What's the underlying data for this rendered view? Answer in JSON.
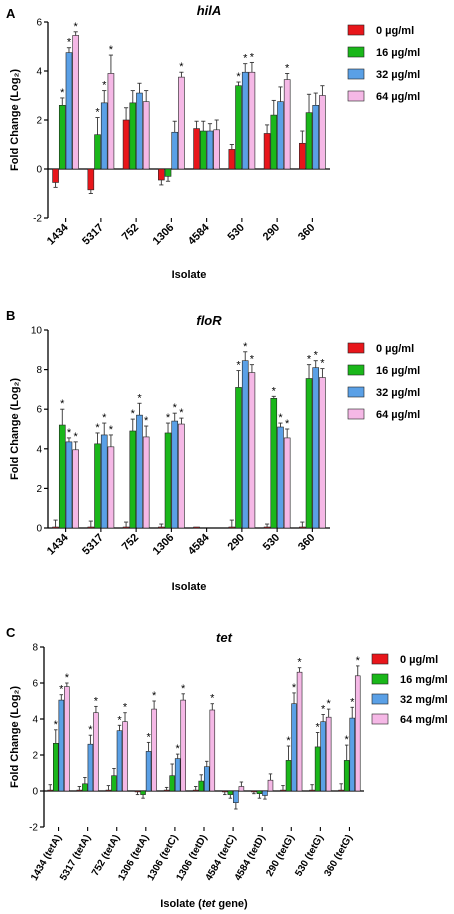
{
  "colors": {
    "s0": "#e8161b",
    "s16": "#1ab71a",
    "s32": "#5aa0e6",
    "s64": "#f5b8e6",
    "axis": "#000000"
  },
  "chart_data": [
    {
      "panel_label": "A",
      "type": "bar",
      "title": "hilA",
      "xlabel": "Isolate",
      "ylabel": "Fold Change (Log₂)",
      "ylim": [
        -2,
        6
      ],
      "yticks": [
        -2,
        0,
        2,
        4,
        6
      ],
      "tick_labels": [
        "-2",
        "0",
        "2",
        "4",
        "6"
      ],
      "categories": [
        "1434",
        "5317",
        "752",
        "1306",
        "4584",
        "530",
        "290",
        "360"
      ],
      "legend": [
        "0 µg/ml",
        "16 µg/ml",
        "32 µg/ml",
        "64 µg/ml"
      ],
      "series": [
        {
          "name": "0 µg/ml",
          "values": [
            -0.55,
            -0.85,
            2.0,
            -0.45,
            1.65,
            0.8,
            1.45,
            1.05
          ],
          "errors": [
            0.2,
            0.15,
            0.5,
            0.2,
            0.3,
            0.2,
            0.35,
            0.5
          ]
        },
        {
          "name": "16 µg/ml",
          "values": [
            2.6,
            1.4,
            2.7,
            -0.3,
            1.55,
            3.4,
            2.2,
            2.3
          ],
          "errors": [
            0.3,
            0.7,
            0.5,
            0.2,
            0.4,
            0.15,
            0.6,
            0.75
          ]
        },
        {
          "name": "32 µg/ml",
          "values": [
            4.75,
            2.7,
            3.1,
            1.5,
            1.55,
            3.95,
            2.75,
            2.6
          ],
          "errors": [
            0.2,
            0.5,
            0.4,
            0.45,
            0.3,
            0.35,
            0.6,
            0.5
          ]
        },
        {
          "name": "64 µg/ml",
          "values": [
            5.45,
            3.9,
            2.75,
            3.75,
            1.6,
            3.95,
            3.65,
            3.0
          ],
          "errors": [
            0.15,
            0.75,
            0.45,
            0.2,
            0.4,
            0.4,
            0.25,
            0.4
          ]
        }
      ],
      "significant": [
        [
          false,
          false,
          false,
          false,
          false,
          false,
          false,
          false
        ],
        [
          true,
          true,
          false,
          false,
          false,
          true,
          false,
          false
        ],
        [
          true,
          true,
          false,
          false,
          false,
          true,
          false,
          false
        ],
        [
          true,
          true,
          false,
          true,
          false,
          true,
          true,
          false
        ]
      ]
    },
    {
      "panel_label": "B",
      "type": "bar",
      "title": "floR",
      "xlabel": "Isolate",
      "ylabel": "Fold Change (Log₂)",
      "ylim": [
        0,
        10
      ],
      "yticks": [
        0,
        2,
        4,
        6,
        8,
        10
      ],
      "tick_labels": [
        "0",
        "2",
        "4",
        "6",
        "8",
        "10"
      ],
      "categories": [
        "1434",
        "5317",
        "752",
        "1306",
        "4584",
        "290",
        "530",
        "360"
      ],
      "legend": [
        "0 µg/ml",
        "16 µg/ml",
        "32 µg/ml",
        "64 µg/ml"
      ],
      "series": [
        {
          "name": "0 µg/ml",
          "values": [
            0.05,
            0.05,
            0.05,
            0.05,
            0.05,
            0.05,
            0.05,
            0.05
          ],
          "errors": [
            0.35,
            0.3,
            0.25,
            0.15,
            0,
            0.35,
            0.15,
            0.25
          ]
        },
        {
          "name": "16 µg/ml",
          "values": [
            5.2,
            4.25,
            4.9,
            4.8,
            0,
            7.1,
            6.55,
            7.55
          ],
          "errors": [
            0.8,
            0.55,
            0.6,
            0.5,
            0,
            0.85,
            0.1,
            0.7
          ]
        },
        {
          "name": "32 µg/ml",
          "values": [
            4.35,
            4.7,
            5.7,
            5.4,
            0,
            8.45,
            5.1,
            8.1
          ],
          "errors": [
            0.2,
            0.6,
            0.6,
            0.4,
            0,
            0.45,
            0.2,
            0.35
          ]
        },
        {
          "name": "64 µg/ml",
          "values": [
            3.95,
            4.1,
            4.6,
            5.25,
            0,
            7.85,
            4.55,
            7.6
          ],
          "errors": [
            0.4,
            0.6,
            0.55,
            0.3,
            0,
            0.4,
            0.45,
            0.45
          ]
        }
      ],
      "significant": [
        [
          false,
          false,
          false,
          false,
          false,
          false,
          false,
          false
        ],
        [
          true,
          true,
          true,
          true,
          false,
          true,
          true,
          true
        ],
        [
          true,
          true,
          true,
          true,
          false,
          true,
          true,
          true
        ],
        [
          true,
          true,
          true,
          true,
          false,
          true,
          true,
          true
        ]
      ]
    },
    {
      "panel_label": "C",
      "type": "bar",
      "title": "tet",
      "xlabel": "Isolate (tet gene)",
      "xlabel_parts": [
        "Isolate (",
        "tet",
        " gene)"
      ],
      "ylabel": "Fold Change (Log₂)",
      "ylim": [
        -2,
        8
      ],
      "yticks": [
        -2,
        0,
        2,
        4,
        6,
        8
      ],
      "tick_labels": [
        "-2",
        "0",
        "2",
        "4",
        "6",
        "8"
      ],
      "categories": [
        "1434 (tetA)",
        "5317 (tetA)",
        "752 (tetA)",
        "1306 (tetA)",
        "1306 (tetC)",
        "1306 (tetD)",
        "4584 (tetC)",
        "4584 (tetD)",
        "290 (tetG)",
        "530 (tetG)",
        "360 (tetG)"
      ],
      "legend": [
        "0 µg/ml",
        "16 mg/ml",
        "32 mg/ml",
        "64 mg/ml"
      ],
      "series": [
        {
          "name": "0 µg/ml",
          "values": [
            0.05,
            0.05,
            0.05,
            -0.05,
            0.05,
            0.05,
            -0.05,
            -0.05,
            0.05,
            0.05,
            0.05
          ],
          "errors": [
            0.3,
            0.2,
            0.25,
            0.15,
            0.15,
            0.2,
            0.15,
            0.1,
            0.25,
            0.3,
            0.35
          ]
        },
        {
          "name": "16 mg/ml",
          "values": [
            2.65,
            0.4,
            0.85,
            -0.2,
            0.85,
            0.55,
            -0.2,
            -0.15,
            1.7,
            2.45,
            1.7
          ],
          "errors": [
            0.75,
            0.35,
            0.4,
            0.2,
            0.65,
            0.35,
            0.2,
            0.25,
            0.8,
            0.8,
            0.85
          ]
        },
        {
          "name": "32 mg/ml",
          "values": [
            5.05,
            2.6,
            3.35,
            2.2,
            1.8,
            1.35,
            -0.65,
            -0.25,
            4.85,
            3.85,
            4.05
          ],
          "errors": [
            0.3,
            0.5,
            0.3,
            0.5,
            0.25,
            0.3,
            0.35,
            0.2,
            0.6,
            0.4,
            0.6
          ]
        },
        {
          "name": "64 mg/ml",
          "values": [
            5.8,
            4.35,
            3.85,
            4.55,
            5.05,
            4.5,
            0.25,
            0.6,
            6.6,
            4.1,
            6.4
          ],
          "errors": [
            0.2,
            0.35,
            0.5,
            0.45,
            0.35,
            0.35,
            0.25,
            0.35,
            0.25,
            0.45,
            0.55
          ]
        }
      ],
      "significant": [
        [
          false,
          false,
          false,
          false,
          false,
          false,
          false,
          false,
          false,
          false,
          false
        ],
        [
          true,
          false,
          false,
          false,
          false,
          false,
          false,
          false,
          true,
          true,
          true
        ],
        [
          true,
          true,
          true,
          true,
          true,
          false,
          false,
          false,
          true,
          true,
          true
        ],
        [
          true,
          true,
          true,
          true,
          true,
          true,
          false,
          false,
          true,
          true,
          true
        ]
      ]
    }
  ]
}
